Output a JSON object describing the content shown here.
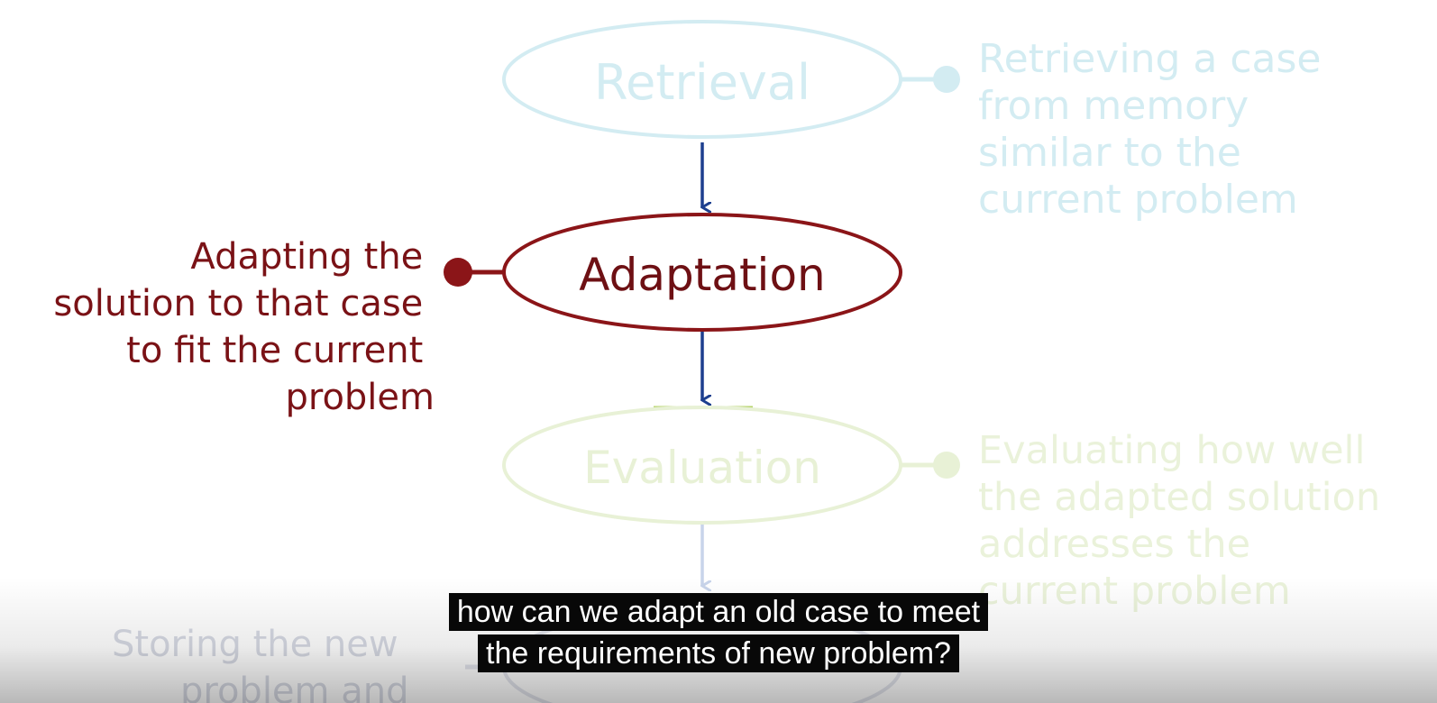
{
  "diagram": {
    "steps": [
      {
        "id": "retrieval",
        "label": "Retrieval",
        "description": [
          "Retrieving a case",
          "from memory",
          "similar to the",
          "current problem"
        ]
      },
      {
        "id": "adaptation",
        "label": "Adaptation",
        "description": [
          "Adapting the",
          "solution to that case",
          "to fit the current",
          "problem"
        ]
      },
      {
        "id": "evaluation",
        "label": "Evaluation",
        "description": [
          "Evaluating how well",
          "the adapted solution",
          "addresses the",
          "current problem"
        ]
      },
      {
        "id": "storage",
        "label": "",
        "description": [
          "Storing the new",
          "problem and"
        ]
      }
    ],
    "active_step": "adaptation",
    "colors": {
      "retrieval": "#cfeaf0",
      "adaptation": "#8b1518",
      "evaluation": "#e6efd2",
      "storage": "#d8dbe6",
      "arrow": "#1d3f8f",
      "arrow_faded": "#c8d4ea"
    }
  },
  "captions": {
    "line1": "how can we adapt an old case to meet",
    "line2": "the requirements of new problem?"
  }
}
